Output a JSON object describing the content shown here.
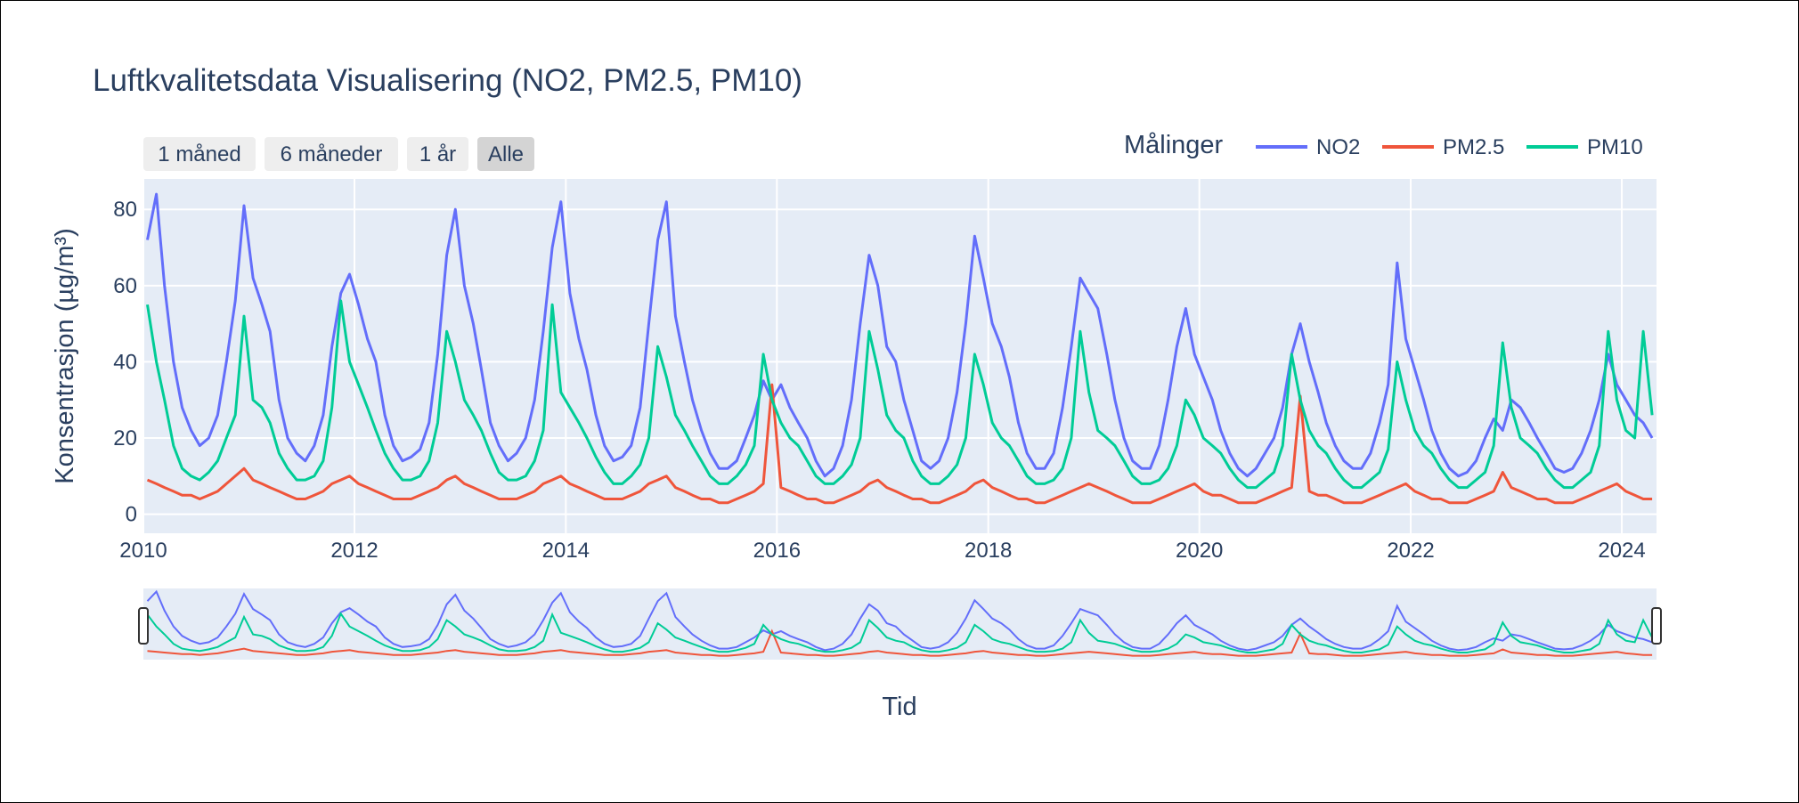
{
  "chart_data": {
    "type": "line",
    "title": "Luftkvalitetsdata Visualisering (NO2, PM2.5, PM10)",
    "xlabel": "Tid",
    "ylabel": "Konsentrasjon (µg/m³)",
    "xlim": [
      "2010-01-01",
      "2024-04-30"
    ],
    "ylim": [
      -5,
      88
    ],
    "x_ticks": [
      "2010",
      "2012",
      "2014",
      "2016",
      "2018",
      "2020",
      "2022",
      "2024"
    ],
    "y_ticks": [
      "0",
      "20",
      "40",
      "60",
      "80"
    ],
    "grid": true,
    "legend": {
      "title": "Målinger",
      "placement": "top-right",
      "orientation": "horizontal"
    },
    "range_selector": {
      "buttons": [
        "1 måned",
        "6 måneder",
        "1 år",
        "Alle"
      ],
      "active": "Alle"
    },
    "range_slider": true,
    "x": [
      "2010-01",
      "2010-02",
      "2010-03",
      "2010-04",
      "2010-05",
      "2010-06",
      "2010-07",
      "2010-08",
      "2010-09",
      "2010-10",
      "2010-11",
      "2010-12",
      "2011-01",
      "2011-02",
      "2011-03",
      "2011-04",
      "2011-05",
      "2011-06",
      "2011-07",
      "2011-08",
      "2011-09",
      "2011-10",
      "2011-11",
      "2011-12",
      "2012-01",
      "2012-02",
      "2012-03",
      "2012-04",
      "2012-05",
      "2012-06",
      "2012-07",
      "2012-08",
      "2012-09",
      "2012-10",
      "2012-11",
      "2012-12",
      "2013-01",
      "2013-02",
      "2013-03",
      "2013-04",
      "2013-05",
      "2013-06",
      "2013-07",
      "2013-08",
      "2013-09",
      "2013-10",
      "2013-11",
      "2013-12",
      "2014-01",
      "2014-02",
      "2014-03",
      "2014-04",
      "2014-05",
      "2014-06",
      "2014-07",
      "2014-08",
      "2014-09",
      "2014-10",
      "2014-11",
      "2014-12",
      "2015-01",
      "2015-02",
      "2015-03",
      "2015-04",
      "2015-05",
      "2015-06",
      "2015-07",
      "2015-08",
      "2015-09",
      "2015-10",
      "2015-11",
      "2015-12",
      "2016-01",
      "2016-02",
      "2016-03",
      "2016-04",
      "2016-05",
      "2016-06",
      "2016-07",
      "2016-08",
      "2016-09",
      "2016-10",
      "2016-11",
      "2016-12",
      "2017-01",
      "2017-02",
      "2017-03",
      "2017-04",
      "2017-05",
      "2017-06",
      "2017-07",
      "2017-08",
      "2017-09",
      "2017-10",
      "2017-11",
      "2017-12",
      "2018-01",
      "2018-02",
      "2018-03",
      "2018-04",
      "2018-05",
      "2018-06",
      "2018-07",
      "2018-08",
      "2018-09",
      "2018-10",
      "2018-11",
      "2018-12",
      "2019-01",
      "2019-02",
      "2019-03",
      "2019-04",
      "2019-05",
      "2019-06",
      "2019-07",
      "2019-08",
      "2019-09",
      "2019-10",
      "2019-11",
      "2019-12",
      "2020-01",
      "2020-02",
      "2020-03",
      "2020-04",
      "2020-05",
      "2020-06",
      "2020-07",
      "2020-08",
      "2020-09",
      "2020-10",
      "2020-11",
      "2020-12",
      "2021-01",
      "2021-02",
      "2021-03",
      "2021-04",
      "2021-05",
      "2021-06",
      "2021-07",
      "2021-08",
      "2021-09",
      "2021-10",
      "2021-11",
      "2021-12",
      "2022-01",
      "2022-02",
      "2022-03",
      "2022-04",
      "2022-05",
      "2022-06",
      "2022-07",
      "2022-08",
      "2022-09",
      "2022-10",
      "2022-11",
      "2022-12",
      "2023-01",
      "2023-02",
      "2023-03",
      "2023-04",
      "2023-05",
      "2023-06",
      "2023-07",
      "2023-08",
      "2023-09",
      "2023-10",
      "2023-11",
      "2023-12",
      "2024-01",
      "2024-02",
      "2024-03",
      "2024-04"
    ],
    "series": [
      {
        "name": "NO2",
        "color": "#636efa",
        "values": [
          72,
          84,
          60,
          40,
          28,
          22,
          18,
          20,
          26,
          40,
          56,
          81,
          62,
          55,
          48,
          30,
          20,
          16,
          14,
          18,
          26,
          44,
          58,
          63,
          55,
          46,
          40,
          26,
          18,
          14,
          15,
          17,
          24,
          42,
          68,
          80,
          60,
          50,
          38,
          24,
          18,
          14,
          16,
          20,
          30,
          48,
          70,
          82,
          58,
          46,
          38,
          26,
          18,
          14,
          15,
          18,
          28,
          50,
          72,
          82,
          52,
          40,
          30,
          22,
          16,
          12,
          12,
          14,
          20,
          26,
          35,
          30,
          34,
          28,
          24,
          20,
          14,
          10,
          12,
          18,
          30,
          50,
          68,
          60,
          44,
          40,
          30,
          22,
          14,
          12,
          14,
          20,
          32,
          50,
          73,
          62,
          50,
          44,
          36,
          24,
          16,
          12,
          12,
          16,
          28,
          44,
          62,
          58,
          54,
          42,
          30,
          20,
          14,
          12,
          12,
          18,
          30,
          44,
          54,
          42,
          36,
          30,
          22,
          16,
          12,
          10,
          12,
          16,
          20,
          28,
          42,
          50,
          40,
          32,
          24,
          18,
          14,
          12,
          12,
          16,
          24,
          34,
          66,
          46,
          38,
          30,
          22,
          16,
          12,
          10,
          11,
          14,
          20,
          25,
          22,
          30,
          28,
          24,
          20,
          16,
          12,
          11,
          12,
          16,
          22,
          30,
          42,
          34,
          30,
          26,
          24,
          20
        ]
      },
      {
        "name": "PM2.5",
        "color": "#ef553b",
        "values": [
          9,
          8,
          7,
          6,
          5,
          5,
          4,
          5,
          6,
          8,
          10,
          12,
          9,
          8,
          7,
          6,
          5,
          4,
          4,
          5,
          6,
          8,
          9,
          10,
          8,
          7,
          6,
          5,
          4,
          4,
          4,
          5,
          6,
          7,
          9,
          10,
          8,
          7,
          6,
          5,
          4,
          4,
          4,
          5,
          6,
          8,
          9,
          10,
          8,
          7,
          6,
          5,
          4,
          4,
          4,
          5,
          6,
          8,
          9,
          10,
          7,
          6,
          5,
          4,
          4,
          3,
          3,
          4,
          5,
          6,
          8,
          34,
          7,
          6,
          5,
          4,
          4,
          3,
          3,
          4,
          5,
          6,
          8,
          9,
          7,
          6,
          5,
          4,
          4,
          3,
          3,
          4,
          5,
          6,
          8,
          9,
          7,
          6,
          5,
          4,
          4,
          3,
          3,
          4,
          5,
          6,
          7,
          8,
          7,
          6,
          5,
          4,
          3,
          3,
          3,
          4,
          5,
          6,
          7,
          8,
          6,
          5,
          5,
          4,
          3,
          3,
          3,
          4,
          5,
          6,
          7,
          31,
          6,
          5,
          5,
          4,
          3,
          3,
          3,
          4,
          5,
          6,
          7,
          8,
          6,
          5,
          4,
          4,
          3,
          3,
          3,
          4,
          5,
          6,
          11,
          7,
          6,
          5,
          4,
          4,
          3,
          3,
          3,
          4,
          5,
          6,
          7,
          8,
          6,
          5,
          4,
          4
        ]
      },
      {
        "name": "PM10",
        "color": "#00cc96",
        "values": [
          55,
          40,
          30,
          18,
          12,
          10,
          9,
          11,
          14,
          20,
          26,
          52,
          30,
          28,
          24,
          16,
          12,
          9,
          9,
          10,
          14,
          28,
          56,
          40,
          34,
          28,
          22,
          16,
          12,
          9,
          9,
          10,
          14,
          24,
          48,
          40,
          30,
          26,
          22,
          16,
          11,
          9,
          9,
          10,
          14,
          22,
          55,
          32,
          28,
          24,
          20,
          15,
          11,
          8,
          8,
          10,
          13,
          20,
          44,
          36,
          26,
          22,
          18,
          14,
          10,
          8,
          8,
          10,
          13,
          18,
          42,
          30,
          24,
          20,
          18,
          14,
          10,
          8,
          8,
          10,
          13,
          20,
          48,
          38,
          26,
          22,
          20,
          14,
          10,
          8,
          8,
          10,
          13,
          20,
          42,
          34,
          24,
          20,
          18,
          14,
          10,
          8,
          8,
          9,
          12,
          20,
          48,
          32,
          22,
          20,
          18,
          14,
          10,
          8,
          8,
          9,
          12,
          18,
          30,
          26,
          20,
          18,
          16,
          12,
          9,
          7,
          7,
          9,
          11,
          18,
          42,
          30,
          22,
          18,
          16,
          12,
          9,
          7,
          7,
          9,
          11,
          17,
          40,
          30,
          22,
          18,
          16,
          12,
          9,
          7,
          7,
          9,
          11,
          18,
          45,
          28,
          20,
          18,
          16,
          12,
          9,
          7,
          7,
          9,
          11,
          18,
          48,
          30,
          22,
          20,
          48,
          26
        ]
      }
    ]
  }
}
